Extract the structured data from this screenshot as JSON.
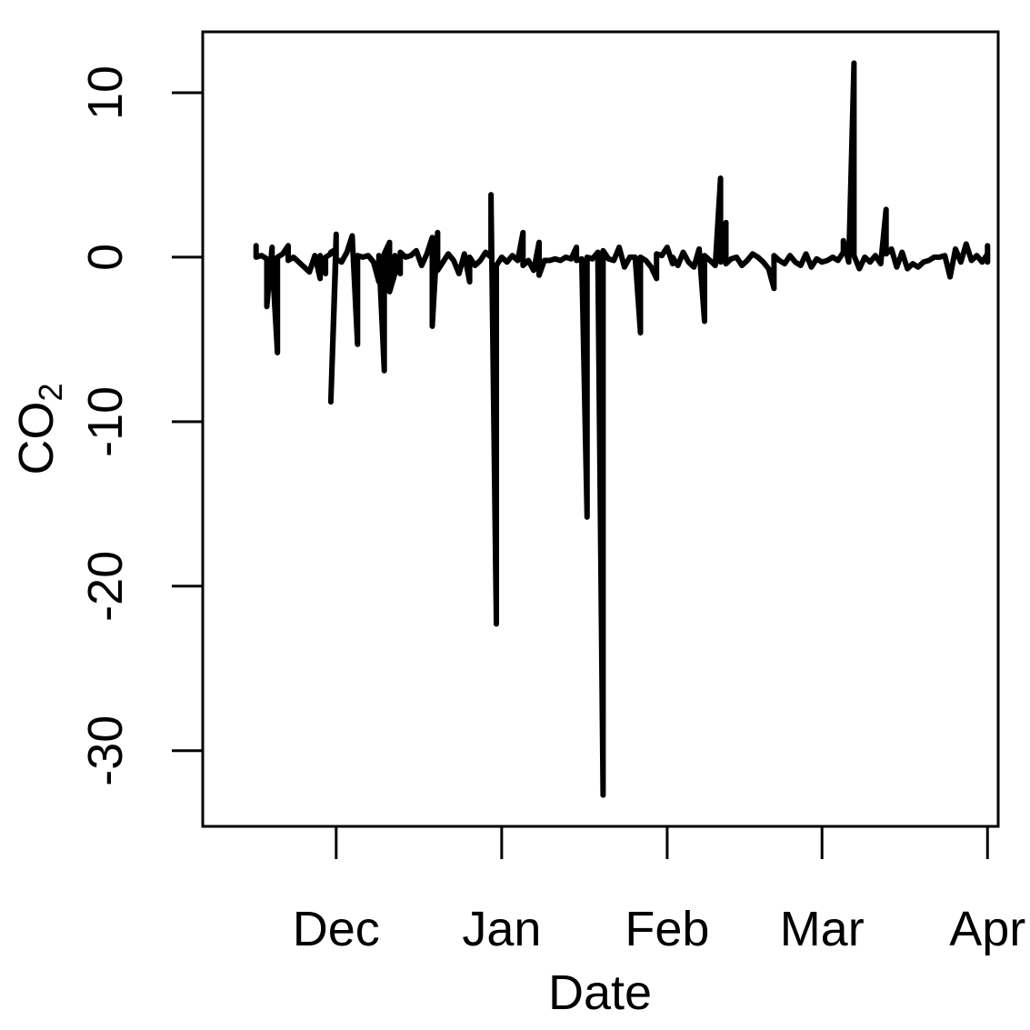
{
  "chart_data": {
    "type": "line",
    "title": "",
    "xlabel": "Date",
    "ylabel_main": "CO",
    "ylabel_sub": "2",
    "x_ticks": [
      {
        "date": "2023-12-01",
        "label": "Dec"
      },
      {
        "date": "2024-01-01",
        "label": "Jan"
      },
      {
        "date": "2024-02-01",
        "label": "Feb"
      },
      {
        "date": "2024-03-01",
        "label": "Mar"
      },
      {
        "date": "2024-04-01",
        "label": "Apr"
      }
    ],
    "y_ticks": [
      -30,
      -20,
      -10,
      0,
      10
    ],
    "xlim": [
      "2023-11-06",
      "2024-04-03"
    ],
    "ylim": [
      -34.6,
      13.7
    ],
    "grid": false,
    "series": [
      {
        "color": "#000000",
        "points": [
          [
            "2023-11-16",
            0.7
          ],
          [
            "2023-11-16",
            0.0
          ],
          [
            "2023-11-17",
            0.1
          ],
          [
            "2023-11-18",
            -0.1
          ],
          [
            "2023-11-18",
            -3.0
          ],
          [
            "2023-11-19",
            0.6
          ],
          [
            "2023-11-19",
            -0.2
          ],
          [
            "2023-11-20",
            -5.8
          ],
          [
            "2023-11-20",
            0.0
          ],
          [
            "2023-11-21",
            0.2
          ],
          [
            "2023-11-22",
            0.7
          ],
          [
            "2023-11-22",
            -0.2
          ],
          [
            "2023-11-23",
            0.0
          ],
          [
            "2023-11-24",
            -0.3
          ],
          [
            "2023-11-25",
            -0.6
          ],
          [
            "2023-11-26",
            -0.9
          ],
          [
            "2023-11-27",
            0.1
          ],
          [
            "2023-11-28",
            -1.3
          ],
          [
            "2023-11-28",
            0.1
          ],
          [
            "2023-11-29",
            -1.0
          ],
          [
            "2023-11-29",
            0.0
          ],
          [
            "2023-11-30",
            0.2
          ],
          [
            "2023-11-30",
            0.3
          ],
          [
            "2023-12-01",
            0.5
          ],
          [
            "2023-11-30",
            -8.8
          ],
          [
            "2023-12-01",
            1.4
          ],
          [
            "2023-12-01",
            -0.1
          ],
          [
            "2023-12-02",
            -0.3
          ],
          [
            "2023-12-03",
            0.3
          ],
          [
            "2023-12-04",
            1.3
          ],
          [
            "2023-12-05",
            -5.3
          ],
          [
            "2023-12-05",
            0.1
          ],
          [
            "2023-12-06",
            0.0
          ],
          [
            "2023-12-07",
            0.1
          ],
          [
            "2023-12-08",
            -0.3
          ],
          [
            "2023-12-09",
            -1.5
          ],
          [
            "2023-12-09",
            0.1
          ],
          [
            "2023-12-10",
            -6.9
          ],
          [
            "2023-12-10",
            0.2
          ],
          [
            "2023-12-11",
            0.9
          ],
          [
            "2023-12-11",
            -2.1
          ],
          [
            "2023-12-12",
            -1.0
          ],
          [
            "2023-12-12",
            0.1
          ],
          [
            "2023-12-13",
            -1.0
          ],
          [
            "2023-12-13",
            0.3
          ],
          [
            "2023-12-14",
            0.0
          ],
          [
            "2023-12-15",
            0.1
          ],
          [
            "2023-12-16",
            0.4
          ],
          [
            "2023-12-17",
            -0.5
          ],
          [
            "2023-12-18",
            0.2
          ],
          [
            "2023-12-19",
            1.2
          ],
          [
            "2023-12-19",
            -4.2
          ],
          [
            "2023-12-20",
            1.5
          ],
          [
            "2023-12-20",
            -0.8
          ],
          [
            "2023-12-21",
            -0.3
          ],
          [
            "2023-12-22",
            0.2
          ],
          [
            "2023-12-23",
            -0.2
          ],
          [
            "2023-12-24",
            -1.0
          ],
          [
            "2023-12-25",
            0.2
          ],
          [
            "2023-12-26",
            -1.5
          ],
          [
            "2023-12-26",
            0.0
          ],
          [
            "2023-12-27",
            -0.5
          ],
          [
            "2023-12-28",
            -0.2
          ],
          [
            "2023-12-29",
            0.3
          ],
          [
            "2023-12-30",
            0.0
          ],
          [
            "2023-12-30",
            3.8
          ],
          [
            "2023-12-31",
            -22.3
          ],
          [
            "2023-12-31",
            -0.5
          ],
          [
            "2024-01-01",
            0.0
          ],
          [
            "2024-01-02",
            -0.3
          ],
          [
            "2024-01-03",
            0.1
          ],
          [
            "2024-01-04",
            -0.2
          ],
          [
            "2024-01-05",
            1.5
          ],
          [
            "2024-01-05",
            -0.5
          ],
          [
            "2024-01-06",
            -0.2
          ],
          [
            "2024-01-07",
            -0.8
          ],
          [
            "2024-01-08",
            0.9
          ],
          [
            "2024-01-08",
            -1.1
          ],
          [
            "2024-01-09",
            -0.2
          ],
          [
            "2024-01-10",
            -0.2
          ],
          [
            "2024-01-11",
            -0.1
          ],
          [
            "2024-01-12",
            -0.2
          ],
          [
            "2024-01-13",
            0.0
          ],
          [
            "2024-01-14",
            -0.1
          ],
          [
            "2024-01-15",
            0.6
          ],
          [
            "2024-01-15",
            -0.2
          ],
          [
            "2024-01-16",
            -0.1
          ],
          [
            "2024-01-17",
            -15.8
          ],
          [
            "2024-01-17",
            0.0
          ],
          [
            "2024-01-18",
            -0.1
          ],
          [
            "2024-01-19",
            0.3
          ],
          [
            "2024-01-20",
            -32.7
          ],
          [
            "2024-01-20",
            0.4
          ],
          [
            "2024-01-21",
            -0.1
          ],
          [
            "2024-01-22",
            -0.2
          ],
          [
            "2024-01-23",
            0.6
          ],
          [
            "2024-01-24",
            -0.6
          ],
          [
            "2024-01-25",
            0.0
          ],
          [
            "2024-01-26",
            0.0
          ],
          [
            "2024-01-27",
            -4.6
          ],
          [
            "2024-01-27",
            0.0
          ],
          [
            "2024-01-28",
            -0.2
          ],
          [
            "2024-01-29",
            -0.6
          ],
          [
            "2024-01-30",
            -1.3
          ],
          [
            "2024-01-30",
            0.2
          ],
          [
            "2024-01-31",
            0.1
          ],
          [
            "2024-02-01",
            0.6
          ],
          [
            "2024-02-02",
            -0.4
          ],
          [
            "2024-02-02",
            0.0
          ],
          [
            "2024-02-03",
            -0.5
          ],
          [
            "2024-02-04",
            0.3
          ],
          [
            "2024-02-05",
            -0.3
          ],
          [
            "2024-02-06",
            -0.6
          ],
          [
            "2024-02-07",
            0.5
          ],
          [
            "2024-02-08",
            -3.9
          ],
          [
            "2024-02-08",
            0.1
          ],
          [
            "2024-02-09",
            -0.2
          ],
          [
            "2024-02-10",
            -0.5
          ],
          [
            "2024-02-11",
            4.8
          ],
          [
            "2024-02-11",
            -0.3
          ],
          [
            "2024-02-12",
            2.1
          ],
          [
            "2024-02-12",
            -0.4
          ],
          [
            "2024-02-13",
            -0.1
          ],
          [
            "2024-02-14",
            0.0
          ],
          [
            "2024-02-15",
            -0.5
          ],
          [
            "2024-02-16",
            -0.2
          ],
          [
            "2024-02-17",
            0.2
          ],
          [
            "2024-02-18",
            0.0
          ],
          [
            "2024-02-19",
            -0.3
          ],
          [
            "2024-02-20",
            -0.7
          ],
          [
            "2024-02-21",
            -1.9
          ],
          [
            "2024-02-21",
            0.1
          ],
          [
            "2024-02-22",
            -0.2
          ],
          [
            "2024-02-23",
            -0.4
          ],
          [
            "2024-02-24",
            0.1
          ],
          [
            "2024-02-25",
            -0.3
          ],
          [
            "2024-02-26",
            -0.5
          ],
          [
            "2024-02-27",
            0.2
          ],
          [
            "2024-02-28",
            -0.6
          ],
          [
            "2024-02-29",
            -0.1
          ],
          [
            "2024-03-01",
            -0.3
          ],
          [
            "2024-03-02",
            -0.2
          ],
          [
            "2024-03-03",
            0.0
          ],
          [
            "2024-03-04",
            -0.2
          ],
          [
            "2024-03-05",
            0.3
          ],
          [
            "2024-03-05",
            1.0
          ],
          [
            "2024-03-06",
            -0.3
          ],
          [
            "2024-03-07",
            11.8
          ],
          [
            "2024-03-07",
            0.1
          ],
          [
            "2024-03-08",
            -0.7
          ],
          [
            "2024-03-09",
            0.0
          ],
          [
            "2024-03-10",
            -0.3
          ],
          [
            "2024-03-11",
            0.1
          ],
          [
            "2024-03-12",
            -0.4
          ],
          [
            "2024-03-13",
            2.9
          ],
          [
            "2024-03-13",
            0.2
          ],
          [
            "2024-03-14",
            0.5
          ],
          [
            "2024-03-15",
            -0.6
          ],
          [
            "2024-03-16",
            0.3
          ],
          [
            "2024-03-17",
            -0.7
          ],
          [
            "2024-03-18",
            -0.4
          ],
          [
            "2024-03-19",
            -0.6
          ],
          [
            "2024-03-20",
            -0.3
          ],
          [
            "2024-03-21",
            -0.2
          ],
          [
            "2024-03-22",
            0.0
          ],
          [
            "2024-03-23",
            0.0
          ],
          [
            "2024-03-24",
            0.1
          ],
          [
            "2024-03-25",
            -1.2
          ],
          [
            "2024-03-26",
            0.5
          ],
          [
            "2024-03-27",
            -0.3
          ],
          [
            "2024-03-28",
            0.8
          ],
          [
            "2024-03-29",
            -0.2
          ],
          [
            "2024-03-30",
            0.1
          ],
          [
            "2024-03-31",
            -0.3
          ],
          [
            "2024-04-01",
            0.2
          ],
          [
            "2024-04-01",
            0.7
          ],
          [
            "2024-04-01",
            -0.3
          ]
        ]
      }
    ]
  }
}
